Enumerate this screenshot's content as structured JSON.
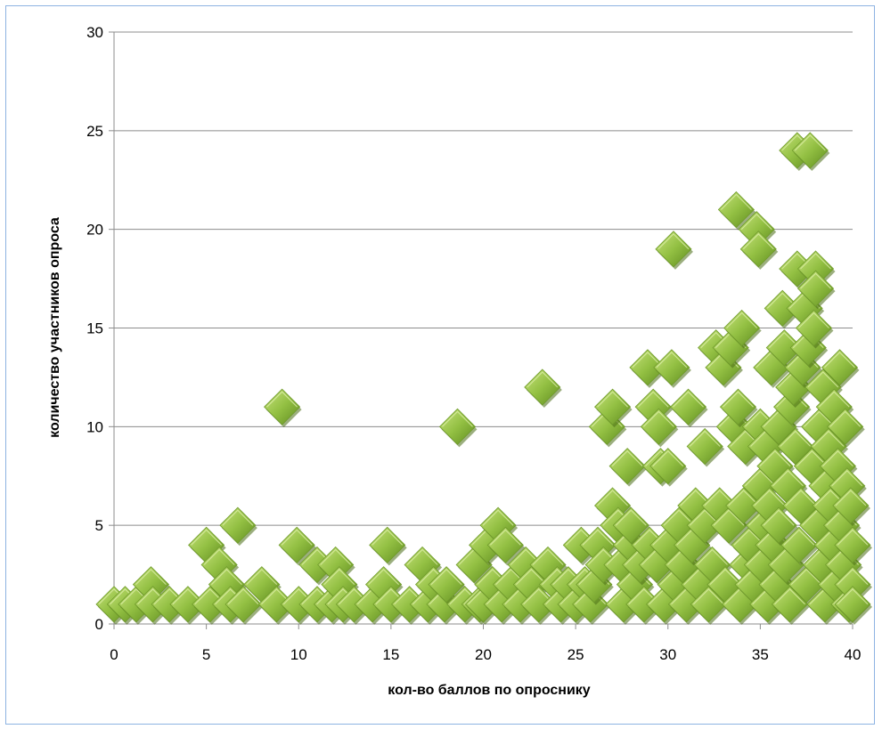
{
  "chart_data": {
    "type": "scatter",
    "title": "",
    "xlabel": "кол-во баллов по опроснику",
    "ylabel": "количество участников опроса",
    "xlim": [
      0,
      40
    ],
    "ylim": [
      0,
      30
    ],
    "x_ticks": [
      "0",
      "5",
      "10",
      "15",
      "20",
      "25",
      "30",
      "35",
      "40"
    ],
    "y_ticks": [
      "0",
      "5",
      "10",
      "15",
      "20",
      "25",
      "30"
    ],
    "grid": "horizontal",
    "legend": "none",
    "marker": "diamond",
    "colors": {
      "marker": "#8fbc3a",
      "marker_light": "#c5e07a",
      "marker_dark": "#5d8a1d",
      "grid": "#8c8c8c",
      "frame": "#8db3e2"
    },
    "series": [
      {
        "points": [
          [
            0,
            1
          ],
          [
            0.6,
            1
          ],
          [
            1.2,
            1
          ],
          [
            2,
            2
          ],
          [
            2.1,
            1
          ],
          [
            3,
            1
          ],
          [
            4,
            1
          ],
          [
            5,
            4
          ],
          [
            5.2,
            1
          ],
          [
            5.7,
            3
          ],
          [
            6.1,
            2
          ],
          [
            6.3,
            1
          ],
          [
            6.7,
            5
          ],
          [
            7,
            1
          ],
          [
            8,
            2
          ],
          [
            8.8,
            1
          ],
          [
            9.1,
            11
          ],
          [
            9.9,
            4
          ],
          [
            10,
            1
          ],
          [
            11,
            3
          ],
          [
            11,
            1
          ],
          [
            11.8,
            1
          ],
          [
            12,
            3
          ],
          [
            12.2,
            2
          ],
          [
            12.4,
            1
          ],
          [
            13,
            1
          ],
          [
            14,
            1
          ],
          [
            14.6,
            2
          ],
          [
            14.8,
            4
          ],
          [
            15,
            1
          ],
          [
            16,
            1
          ],
          [
            16.7,
            3
          ],
          [
            17,
            1
          ],
          [
            17.3,
            2
          ],
          [
            17.9,
            1
          ],
          [
            18,
            2
          ],
          [
            18.6,
            10
          ],
          [
            19,
            1
          ],
          [
            19.5,
            3
          ],
          [
            19.8,
            1
          ],
          [
            20,
            1
          ],
          [
            20.2,
            4
          ],
          [
            20.5,
            2
          ],
          [
            20.8,
            5
          ],
          [
            21,
            1
          ],
          [
            21.2,
            4
          ],
          [
            21.5,
            2
          ],
          [
            22,
            1
          ],
          [
            22.3,
            3
          ],
          [
            22.6,
            2
          ],
          [
            23,
            1
          ],
          [
            23.2,
            12
          ],
          [
            23.5,
            3
          ],
          [
            24,
            2
          ],
          [
            24.2,
            1
          ],
          [
            24.6,
            2
          ],
          [
            25,
            1
          ],
          [
            25.3,
            4
          ],
          [
            25.5,
            2
          ],
          [
            25.8,
            1
          ],
          [
            26,
            2
          ],
          [
            26.2,
            4
          ],
          [
            26.5,
            3
          ],
          [
            26.7,
            10
          ],
          [
            27,
            11
          ],
          [
            27,
            6
          ],
          [
            27.3,
            5
          ],
          [
            27.5,
            3
          ],
          [
            27.6,
            1
          ],
          [
            27.8,
            8
          ],
          [
            28,
            4
          ],
          [
            28,
            5
          ],
          [
            28.2,
            2
          ],
          [
            28.5,
            3
          ],
          [
            28.7,
            1
          ],
          [
            28.9,
            13
          ],
          [
            29,
            4
          ],
          [
            29.2,
            11
          ],
          [
            29.4,
            3
          ],
          [
            29.5,
            10
          ],
          [
            29.6,
            8
          ],
          [
            29.8,
            1
          ],
          [
            30,
            8
          ],
          [
            30,
            4
          ],
          [
            30.2,
            13
          ],
          [
            30.3,
            19
          ],
          [
            30.4,
            2
          ],
          [
            30.6,
            5
          ],
          [
            30.8,
            3
          ],
          [
            31,
            1
          ],
          [
            31.1,
            11
          ],
          [
            31.3,
            4
          ],
          [
            31.5,
            6
          ],
          [
            31.7,
            2
          ],
          [
            32,
            9
          ],
          [
            32,
            5
          ],
          [
            32.2,
            1
          ],
          [
            32.4,
            3
          ],
          [
            32.6,
            14
          ],
          [
            32.8,
            6
          ],
          [
            33,
            13
          ],
          [
            33.1,
            2
          ],
          [
            33.3,
            5
          ],
          [
            33.4,
            14
          ],
          [
            33.6,
            10
          ],
          [
            33.7,
            21
          ],
          [
            33.8,
            11
          ],
          [
            33.9,
            1
          ],
          [
            34,
            15
          ],
          [
            34.1,
            6
          ],
          [
            34.2,
            9
          ],
          [
            34.3,
            3
          ],
          [
            34.4,
            4
          ],
          [
            34.6,
            2
          ],
          [
            34.8,
            20
          ],
          [
            34.9,
            19
          ],
          [
            35,
            10
          ],
          [
            35,
            7
          ],
          [
            35.1,
            3
          ],
          [
            35.2,
            5
          ],
          [
            35.3,
            9
          ],
          [
            35.4,
            1
          ],
          [
            35.5,
            6
          ],
          [
            35.6,
            13
          ],
          [
            35.7,
            4
          ],
          [
            35.8,
            8
          ],
          [
            35.9,
            2
          ],
          [
            36,
            10
          ],
          [
            36,
            5
          ],
          [
            36.2,
            16
          ],
          [
            36.3,
            14
          ],
          [
            36.4,
            3
          ],
          [
            36.5,
            7
          ],
          [
            36.6,
            1
          ],
          [
            36.7,
            11
          ],
          [
            36.8,
            12
          ],
          [
            36.9,
            9
          ],
          [
            37,
            24
          ],
          [
            37,
            18
          ],
          [
            37.1,
            4
          ],
          [
            37.2,
            6
          ],
          [
            37.3,
            13
          ],
          [
            37.4,
            16
          ],
          [
            37.5,
            2
          ],
          [
            37.6,
            14
          ],
          [
            37.7,
            24
          ],
          [
            37.8,
            8
          ],
          [
            37.9,
            15
          ],
          [
            38,
            18
          ],
          [
            38,
            17
          ],
          [
            38.1,
            5
          ],
          [
            38.2,
            10
          ],
          [
            38.3,
            3
          ],
          [
            38.4,
            12
          ],
          [
            38.5,
            1
          ],
          [
            38.6,
            7
          ],
          [
            38.7,
            9
          ],
          [
            38.8,
            6
          ],
          [
            38.9,
            4
          ],
          [
            39,
            11
          ],
          [
            39.1,
            2
          ],
          [
            39.2,
            8
          ],
          [
            39.3,
            13
          ],
          [
            39.4,
            5
          ],
          [
            39.5,
            3
          ],
          [
            39.6,
            10
          ],
          [
            39.7,
            7
          ],
          [
            39.8,
            1
          ],
          [
            39.9,
            6
          ],
          [
            40,
            4
          ],
          [
            40,
            2
          ],
          [
            40,
            1
          ]
        ]
      }
    ]
  }
}
